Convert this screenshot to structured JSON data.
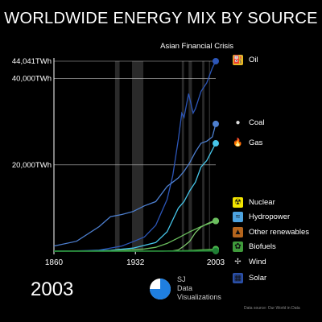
{
  "header": {
    "title": "WORLDWIDE ENERGY MIX BY SOURCE"
  },
  "current_year": "2003",
  "brand": {
    "line1": "SJ",
    "line2": "Data",
    "line3": "Visualizations"
  },
  "footer": {
    "source": "Data source: Our World in Data"
  },
  "colors": {
    "background": "#000000",
    "oil": "#2c56b8",
    "coal": "#4d7fcf",
    "gas": "#46c6ea",
    "nuclear": "#7fc96d",
    "hydropower": "#6bbf5e",
    "other_renewables": "#58b84f",
    "biofuels": "#3f9a3b",
    "wind": "#2fae4a",
    "solar": "#1f7d34",
    "gridline": "#bbbbbb",
    "crisis_band": "#2a2a2a"
  },
  "legend": [
    {
      "key": "oil",
      "label": "Oil",
      "icon": "oil-barrel-icon",
      "glyph": "⛽",
      "icon_bg": "#e8b923"
    },
    {
      "key": "coal",
      "label": "Coal",
      "icon": "coal-icon",
      "glyph": "●",
      "icon_bg": "#000000"
    },
    {
      "key": "gas",
      "label": "Gas",
      "icon": "gas-flame-icon",
      "glyph": "🔥",
      "icon_bg": "#000000"
    },
    {
      "key": "nuclear",
      "label": "Nuclear",
      "icon": "radiation-icon",
      "glyph": "☢",
      "icon_bg": "#f2e400"
    },
    {
      "key": "hydropower",
      "label": "Hydropower",
      "icon": "water-icon",
      "glyph": "≈",
      "icon_bg": "#4da3e0"
    },
    {
      "key": "other_renewables",
      "label": "Other renewables",
      "icon": "other-renewables-icon",
      "glyph": "▲",
      "icon_bg": "#b5651d"
    },
    {
      "key": "biofuels",
      "label": "Biofuels",
      "icon": "biofuel-icon",
      "glyph": "✿",
      "icon_bg": "#3f9a3b"
    },
    {
      "key": "wind",
      "label": "Wind",
      "icon": "wind-turbine-icon",
      "glyph": "✢",
      "icon_bg": "#000000"
    },
    {
      "key": "solar",
      "label": "Solar",
      "icon": "solar-panel-icon",
      "glyph": "▦",
      "icon_bg": "#2a4fa8"
    }
  ],
  "chart_data": {
    "type": "line",
    "title": "WORLDWIDE ENERGY MIX BY SOURCE",
    "xlabel": "",
    "ylabel": "",
    "x_ticks": [
      "1860",
      "1932",
      "2003"
    ],
    "y_ticks": [
      "20,000TWh",
      "40,000TWh",
      "44,041TWh"
    ],
    "xlim": [
      1860,
      2003
    ],
    "ylim": [
      0,
      44041
    ],
    "grid": true,
    "annotations": [
      {
        "text": "Asian Financial Crisis",
        "x": 1997
      }
    ],
    "shaded_periods": [
      [
        1914,
        1918
      ],
      [
        1929,
        1939
      ],
      [
        1973,
        1975
      ],
      [
        1979,
        1982
      ],
      [
        1991,
        1993
      ],
      [
        1997,
        1998
      ]
    ],
    "series": [
      {
        "key": "oil",
        "name": "Oil",
        "x": [
          1860,
          1880,
          1900,
          1920,
          1930,
          1940,
          1950,
          1960,
          1965,
          1970,
          1973,
          1975,
          1979,
          1983,
          1985,
          1990,
          1995,
          2000,
          2003
        ],
        "y": [
          0,
          50,
          230,
          1200,
          2200,
          3300,
          6000,
          12000,
          17500,
          26000,
          32000,
          31000,
          36500,
          32000,
          33000,
          37000,
          39000,
          42500,
          44041
        ]
      },
      {
        "key": "coal",
        "name": "Coal",
        "x": [
          1860,
          1880,
          1900,
          1910,
          1920,
          1930,
          1940,
          1950,
          1960,
          1965,
          1970,
          1975,
          1980,
          1985,
          1990,
          1995,
          2000,
          2003
        ],
        "y": [
          1200,
          2300,
          5700,
          8000,
          8500,
          9200,
          10500,
          11500,
          15000,
          16000,
          17000,
          18500,
          20500,
          23000,
          25000,
          25500,
          26500,
          29500
        ]
      },
      {
        "key": "gas",
        "name": "Gas",
        "x": [
          1860,
          1890,
          1910,
          1930,
          1950,
          1960,
          1970,
          1975,
          1980,
          1985,
          1990,
          1995,
          2000,
          2003
        ],
        "y": [
          0,
          50,
          200,
          700,
          2000,
          4500,
          10000,
          11500,
          14000,
          16000,
          19500,
          21000,
          23500,
          25000
        ]
      },
      {
        "key": "nuclear",
        "name": "Nuclear",
        "x": [
          1860,
          1956,
          1960,
          1965,
          1970,
          1975,
          1980,
          1985,
          1990,
          1995,
          2000,
          2003
        ],
        "y": [
          0,
          0,
          20,
          80,
          300,
          1200,
          2300,
          4300,
          5600,
          6300,
          6900,
          7000
        ]
      },
      {
        "key": "hydropower",
        "name": "Hydropower",
        "x": [
          1860,
          1900,
          1920,
          1940,
          1950,
          1960,
          1970,
          1980,
          1990,
          2000,
          2003
        ],
        "y": [
          0,
          20,
          200,
          500,
          900,
          1800,
          3100,
          4500,
          5700,
          6700,
          7000
        ]
      },
      {
        "key": "other_renewables",
        "name": "Other renewables",
        "x": [
          1860,
          1960,
          1970,
          1980,
          1990,
          2000,
          2003
        ],
        "y": [
          0,
          20,
          50,
          150,
          300,
          450,
          500
        ]
      },
      {
        "key": "biofuels",
        "name": "Biofuels",
        "x": [
          1860,
          1975,
          1980,
          1990,
          2000,
          2003
        ],
        "y": [
          0,
          10,
          50,
          100,
          150,
          200
        ]
      },
      {
        "key": "wind",
        "name": "Wind",
        "x": [
          1860,
          1985,
          1990,
          1995,
          2000,
          2003
        ],
        "y": [
          0,
          5,
          10,
          30,
          80,
          180
        ]
      },
      {
        "key": "solar",
        "name": "Solar",
        "x": [
          1860,
          1990,
          2000,
          2003
        ],
        "y": [
          0,
          1,
          3,
          5
        ]
      }
    ]
  }
}
